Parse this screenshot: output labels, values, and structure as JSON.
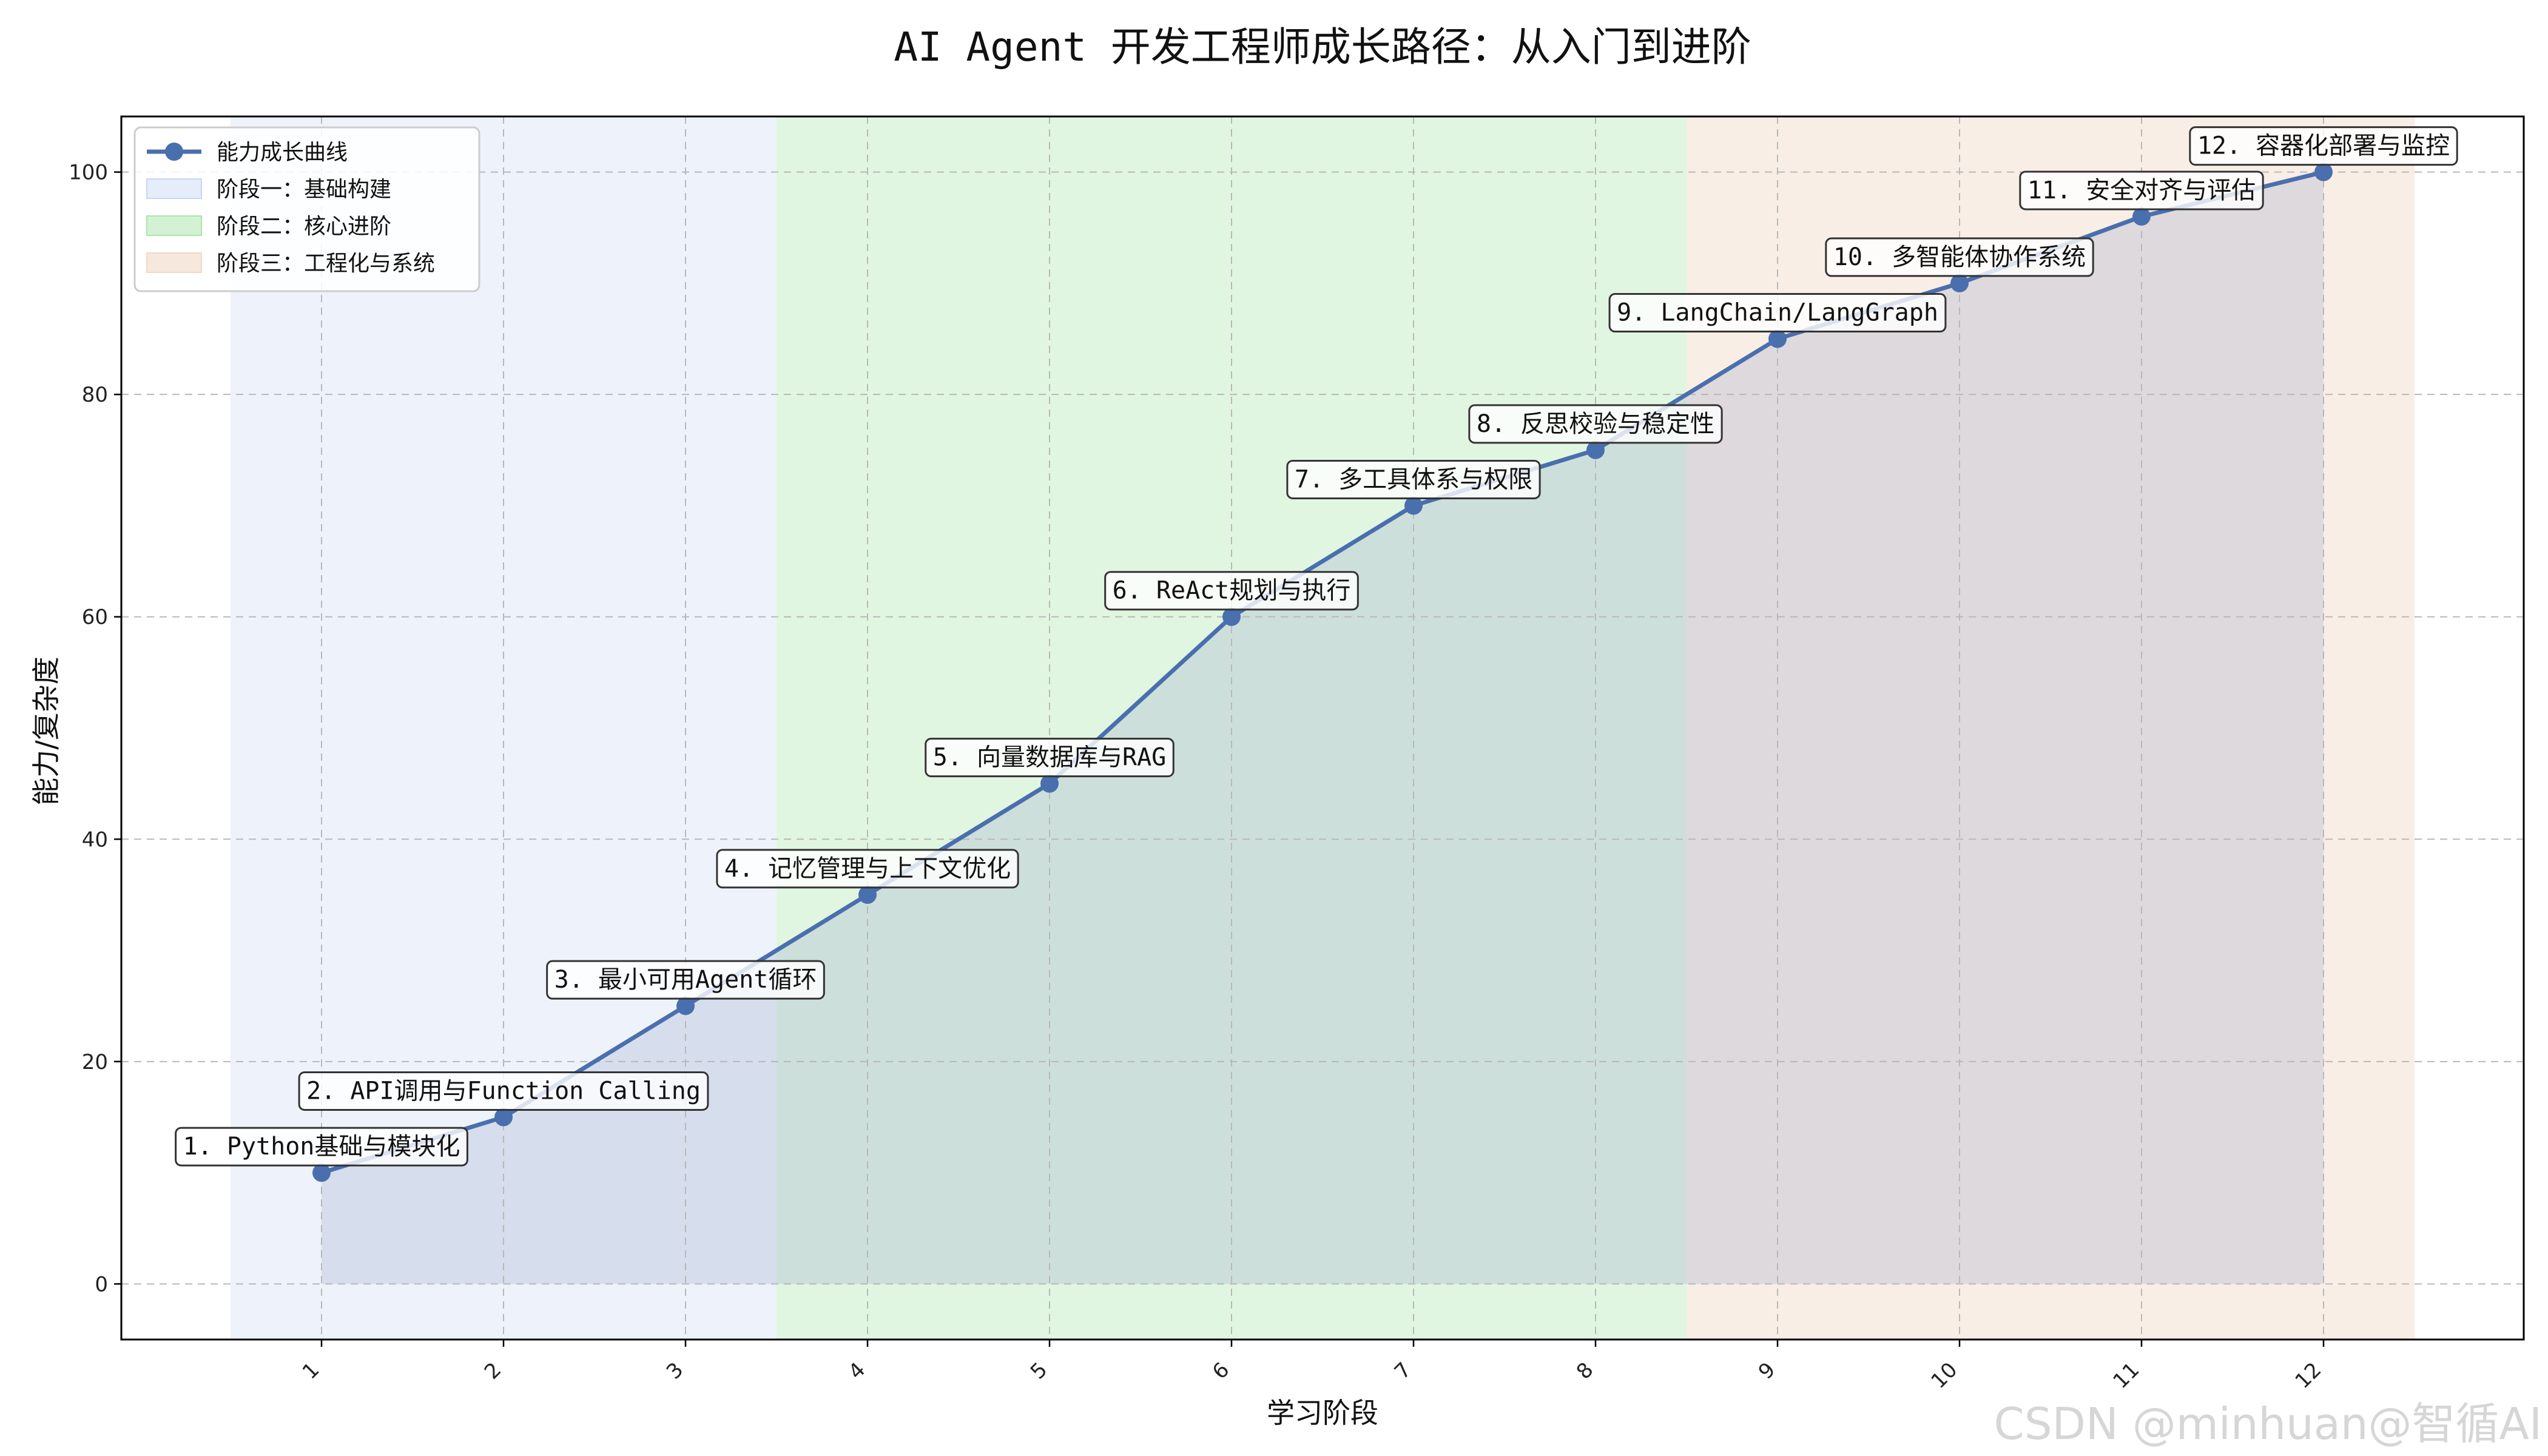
{
  "chart_data": {
    "type": "line",
    "title": "AI Agent 开发工程师成长路径：从入门到进阶",
    "xlabel": "学习阶段",
    "ylabel": "能力/复杂度",
    "xlim": [
      -0.1,
      13.1
    ],
    "ylim": [
      -5,
      105
    ],
    "x_ticks": [
      1,
      2,
      3,
      4,
      5,
      6,
      7,
      8,
      9,
      10,
      11,
      12
    ],
    "y_ticks": [
      0,
      20,
      40,
      60,
      80,
      100
    ],
    "grid": true,
    "legend_position": "top-left",
    "series": [
      {
        "name": "能力成长曲线",
        "color": "#4a6fae",
        "x": [
          1,
          2,
          3,
          4,
          5,
          6,
          7,
          8,
          9,
          10,
          11,
          12
        ],
        "y": [
          10,
          15,
          25,
          35,
          45,
          60,
          70,
          75,
          85,
          90,
          96,
          100
        ]
      }
    ],
    "phases": [
      {
        "name": "阶段一：基础构建",
        "x_range": [
          0.5,
          3.5
        ],
        "color": "#c6d7f3",
        "opacity": 0.3
      },
      {
        "name": "阶段二：核心进阶",
        "x_range": [
          3.5,
          8.5
        ],
        "color": "#a8e6a8",
        "opacity": 0.35
      },
      {
        "name": "阶段三：工程化与系统",
        "x_range": [
          8.5,
          12.5
        ],
        "color": "#f0d9c6",
        "opacity": 0.45
      }
    ],
    "fill_under_curve": {
      "color": "#9aa7c8",
      "opacity": 0.28
    },
    "annotations": [
      {
        "x": 1,
        "y": 10,
        "text": "1. Python基础与模块化"
      },
      {
        "x": 2,
        "y": 15,
        "text": "2. API调用与Function Calling"
      },
      {
        "x": 3,
        "y": 25,
        "text": "3. 最小可用Agent循环"
      },
      {
        "x": 4,
        "y": 35,
        "text": "4. 记忆管理与上下文优化"
      },
      {
        "x": 5,
        "y": 45,
        "text": "5. 向量数据库与RAG"
      },
      {
        "x": 6,
        "y": 60,
        "text": "6. ReAct规划与执行"
      },
      {
        "x": 7,
        "y": 70,
        "text": "7. 多工具体系与权限"
      },
      {
        "x": 8,
        "y": 75,
        "text": "8. 反思校验与稳定性"
      },
      {
        "x": 9,
        "y": 85,
        "text": "9. LangChain/LangGraph"
      },
      {
        "x": 10,
        "y": 90,
        "text": "10. 多智能体协作系统"
      },
      {
        "x": 11,
        "y": 96,
        "text": "11. 安全对齐与评估"
      },
      {
        "x": 12,
        "y": 100,
        "text": "12. 容器化部署与监控"
      }
    ]
  },
  "watermark": "CSDN @minhuan@智循AI"
}
